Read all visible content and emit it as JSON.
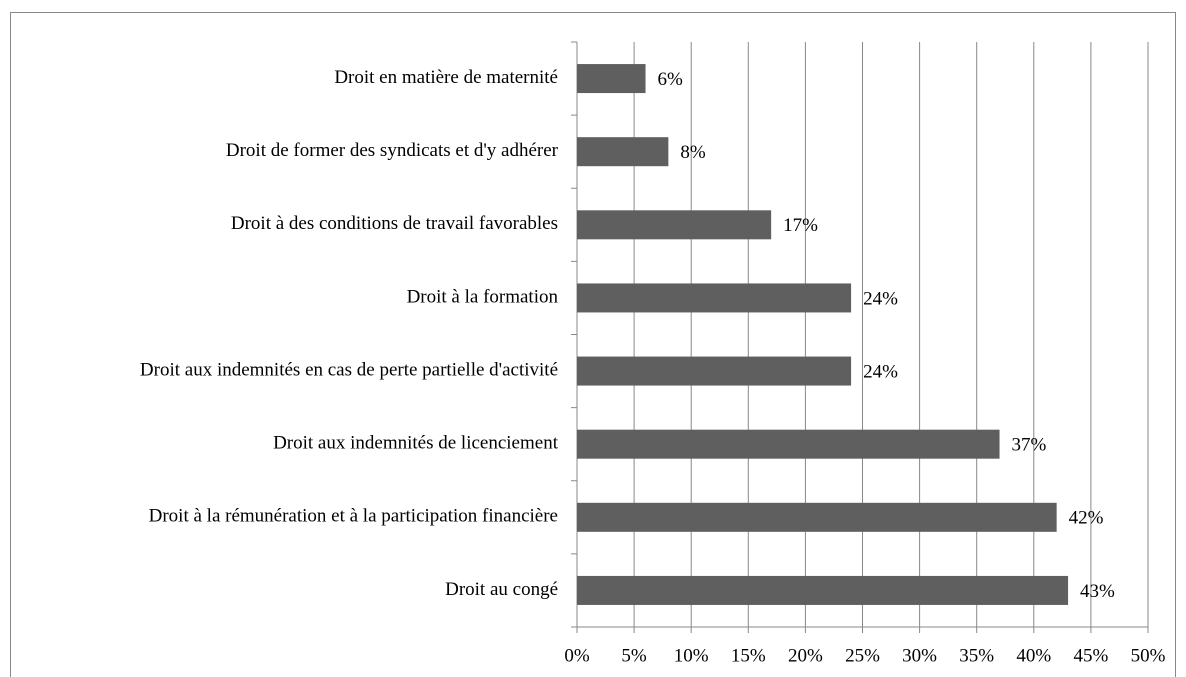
{
  "chart_data": {
    "type": "bar",
    "orientation": "horizontal",
    "categories": [
      "Droit en matière de maternité",
      "Droit de former des syndicats et d'y adhérer",
      "Droit à des conditions de travail favorables",
      "Droit à la formation",
      "Droit aux indemnités en cas de perte partielle d'activité",
      "Droit aux indemnités de licenciement",
      "Droit à la rémunération et à la participation financière",
      "Droit au congé"
    ],
    "values": [
      6,
      8,
      17,
      24,
      24,
      37,
      42,
      43
    ],
    "value_labels": [
      "6%",
      "8%",
      "17%",
      "24%",
      "24%",
      "37%",
      "42%",
      "43%"
    ],
    "color": "#5f5f5f",
    "xlim": [
      0,
      50
    ],
    "xticks": [
      {
        "value": 0,
        "label": "0%"
      },
      {
        "value": 5,
        "label": "5%"
      },
      {
        "value": 10,
        "label": "10%"
      },
      {
        "value": 15,
        "label": "15%"
      },
      {
        "value": 20,
        "label": "20%"
      },
      {
        "value": 25,
        "label": "25%"
      },
      {
        "value": 30,
        "label": "30%"
      },
      {
        "value": 35,
        "label": "35%"
      },
      {
        "value": 40,
        "label": "40%"
      },
      {
        "value": 45,
        "label": "45%"
      },
      {
        "value": 50,
        "label": "50%"
      }
    ],
    "grid": true
  }
}
